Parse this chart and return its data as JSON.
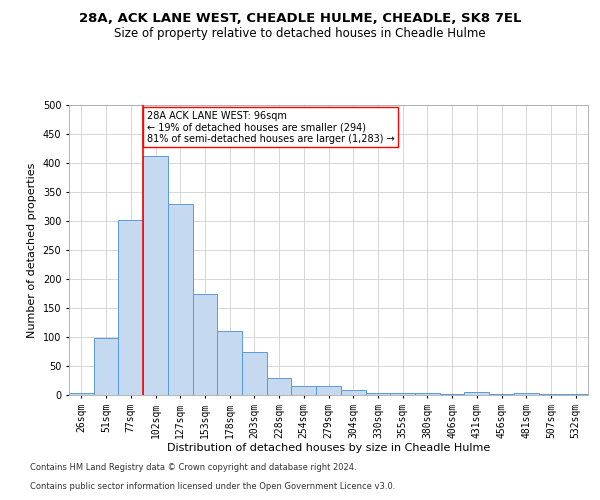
{
  "title1": "28A, ACK LANE WEST, CHEADLE HULME, CHEADLE, SK8 7EL",
  "title2": "Size of property relative to detached houses in Cheadle Hulme",
  "xlabel": "Distribution of detached houses by size in Cheadle Hulme",
  "ylabel": "Number of detached properties",
  "categories": [
    "26sqm",
    "51sqm",
    "77sqm",
    "102sqm",
    "127sqm",
    "153sqm",
    "178sqm",
    "203sqm",
    "228sqm",
    "254sqm",
    "279sqm",
    "304sqm",
    "330sqm",
    "355sqm",
    "380sqm",
    "406sqm",
    "431sqm",
    "456sqm",
    "481sqm",
    "507sqm",
    "532sqm"
  ],
  "values": [
    3,
    99,
    302,
    412,
    330,
    175,
    110,
    75,
    30,
    15,
    15,
    9,
    4,
    3,
    4,
    1,
    5,
    1,
    3,
    1,
    1
  ],
  "bar_color": "#c5d9f0",
  "bar_edge_color": "#5b9bd5",
  "vline_color": "red",
  "vline_index": 2.5,
  "annotation_text": "28A ACK LANE WEST: 96sqm\n← 19% of detached houses are smaller (294)\n81% of semi-detached houses are larger (1,283) →",
  "annotation_box_color": "white",
  "annotation_box_edge_color": "red",
  "ylim": [
    0,
    500
  ],
  "yticks": [
    0,
    50,
    100,
    150,
    200,
    250,
    300,
    350,
    400,
    450,
    500
  ],
  "grid_color": "#d0d0d0",
  "footer1": "Contains HM Land Registry data © Crown copyright and database right 2024.",
  "footer2": "Contains public sector information licensed under the Open Government Licence v3.0.",
  "title_fontsize": 9.5,
  "subtitle_fontsize": 8.5,
  "ylabel_fontsize": 8,
  "xlabel_fontsize": 8,
  "tick_fontsize": 7,
  "annotation_fontsize": 7,
  "footer_fontsize": 6
}
